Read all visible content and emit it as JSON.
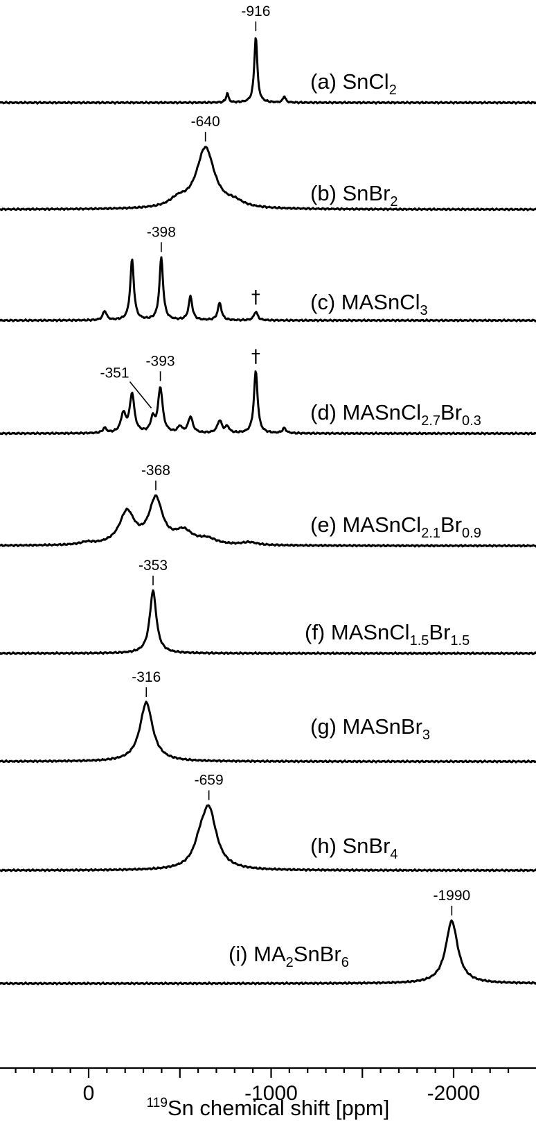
{
  "chart_data": {
    "type": "line",
    "xlabel": {
      "sup": "119",
      "text": "Sn chemical shift [ppm]"
    },
    "x_axis": {
      "reversed": true,
      "xlim": [
        500,
        -2350
      ],
      "ticks": [
        0,
        -1000,
        -2000
      ],
      "tick_labels": [
        "0",
        "-1000",
        "-2000"
      ]
    },
    "series": [
      {
        "label": "(a) ",
        "formula": [
          [
            "SnCl",
            ""
          ],
          [
            "2",
            "sub"
          ]
        ],
        "peaks": [
          {
            "x": -916,
            "h": 1.0,
            "w": 10
          },
          {
            "x": -760,
            "h": 0.14,
            "w": 8
          },
          {
            "x": -1072,
            "h": 0.1,
            "w": 8
          }
        ],
        "annotations": [
          {
            "text": "-916",
            "x": -916
          }
        ],
        "daggers": []
      },
      {
        "label": "(b) ",
        "formula": [
          [
            "SnBr",
            ""
          ],
          [
            "2",
            "sub"
          ]
        ],
        "peaks": [
          {
            "x": -640,
            "h": 1.0,
            "w": 60
          },
          {
            "x": -490,
            "h": 0.12,
            "w": 55
          },
          {
            "x": -800,
            "h": 0.08,
            "w": 55
          }
        ],
        "annotations": [
          {
            "text": "-640",
            "x": -640
          }
        ],
        "daggers": []
      },
      {
        "label": "(c) ",
        "formula": [
          [
            "MASnCl",
            ""
          ],
          [
            "3",
            "sub"
          ]
        ],
        "peaks": [
          {
            "x": -398,
            "h": 1.0,
            "w": 12
          },
          {
            "x": -238,
            "h": 0.97,
            "w": 12
          },
          {
            "x": -558,
            "h": 0.38,
            "w": 12
          },
          {
            "x": -718,
            "h": 0.28,
            "w": 12
          },
          {
            "x": -88,
            "h": 0.15,
            "w": 12
          },
          {
            "x": -916,
            "h": 0.14,
            "w": 12
          }
        ],
        "annotations": [
          {
            "text": "-398",
            "x": -398
          }
        ],
        "daggers": [
          {
            "x": -916
          }
        ]
      },
      {
        "label": "(d) ",
        "formula": [
          [
            "MASnCl",
            ""
          ],
          [
            "2.7",
            "sub"
          ],
          [
            "Br",
            ""
          ],
          [
            "0.3",
            "sub"
          ]
        ],
        "peaks": [
          {
            "x": -393,
            "h": 0.72,
            "w": 15
          },
          {
            "x": -238,
            "h": 0.62,
            "w": 15
          },
          {
            "x": -351,
            "h": 0.22,
            "w": 13
          },
          {
            "x": -190,
            "h": 0.3,
            "w": 16
          },
          {
            "x": -558,
            "h": 0.26,
            "w": 15
          },
          {
            "x": -500,
            "h": 0.1,
            "w": 13
          },
          {
            "x": -718,
            "h": 0.2,
            "w": 15
          },
          {
            "x": -760,
            "h": 0.1,
            "w": 12
          },
          {
            "x": -916,
            "h": 1.0,
            "w": 12
          },
          {
            "x": -1072,
            "h": 0.08,
            "w": 12
          },
          {
            "x": -88,
            "h": 0.08,
            "w": 12
          }
        ],
        "annotations": [
          {
            "text": "-393",
            "x": -393
          }
        ],
        "leader": {
          "text": "-351",
          "x": -351
        },
        "daggers": [
          {
            "x": -916
          }
        ]
      },
      {
        "label": "(e) ",
        "formula": [
          [
            "MASnCl",
            ""
          ],
          [
            "2.1",
            "sub"
          ],
          [
            "Br",
            ""
          ],
          [
            "0.9",
            "sub"
          ]
        ],
        "peaks": [
          {
            "x": -368,
            "h": 1.0,
            "w": 45
          },
          {
            "x": -210,
            "h": 0.72,
            "w": 50
          },
          {
            "x": -520,
            "h": 0.28,
            "w": 60
          },
          {
            "x": -650,
            "h": 0.12,
            "w": 60
          },
          {
            "x": -880,
            "h": 0.06,
            "w": 50
          },
          {
            "x": 10,
            "h": 0.05,
            "w": 40
          }
        ],
        "annotations": [
          {
            "text": "-368",
            "x": -368
          }
        ],
        "daggers": []
      },
      {
        "label": "(f) ",
        "formula": [
          [
            "MASnCl",
            ""
          ],
          [
            "1.5",
            "sub"
          ],
          [
            "Br",
            ""
          ],
          [
            "1.5",
            "sub"
          ]
        ],
        "peaks": [
          {
            "x": -353,
            "h": 1.0,
            "w": 22
          }
        ],
        "annotations": [
          {
            "text": "-353",
            "x": -353
          }
        ],
        "daggers": []
      },
      {
        "label": "(g) ",
        "formula": [
          [
            "MASnBr",
            ""
          ],
          [
            "3",
            "sub"
          ]
        ],
        "peaks": [
          {
            "x": -316,
            "h": 1.0,
            "w": 42
          }
        ],
        "annotations": [
          {
            "text": "-316",
            "x": -316
          }
        ],
        "daggers": []
      },
      {
        "label": "(h) ",
        "formula": [
          [
            "SnBr",
            ""
          ],
          [
            "4",
            "sub"
          ]
        ],
        "peaks": [
          {
            "x": -659,
            "h": 1.0,
            "w": 50
          },
          {
            "x": -610,
            "h": 0.25,
            "w": 40
          }
        ],
        "annotations": [
          {
            "text": "-659",
            "x": -659
          }
        ],
        "daggers": []
      },
      {
        "label": "(i) ",
        "formula": [
          [
            "MA",
            ""
          ],
          [
            "2",
            "sub"
          ],
          [
            "SnBr",
            ""
          ],
          [
            "6",
            "sub"
          ]
        ],
        "peaks": [
          {
            "x": -1990,
            "h": 1.0,
            "w": 40
          }
        ],
        "annotations": [
          {
            "text": "-1990",
            "x": -1990
          }
        ],
        "daggers": []
      }
    ]
  }
}
